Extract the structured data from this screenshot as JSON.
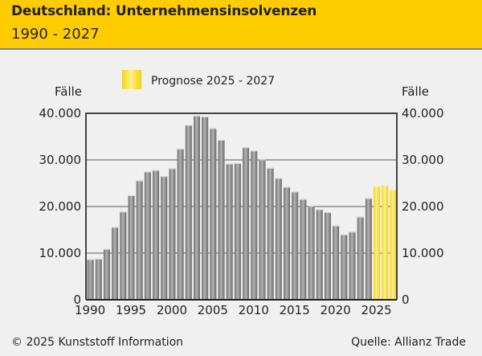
{
  "header": {
    "title": "Deutschland: Unternehmensinsolvenzen",
    "subtitle": "1990 - 2027"
  },
  "footer": {
    "copyright": "© 2025 Kunststoff Information",
    "source": "Quelle: Allianz Trade"
  },
  "colors": {
    "header_bg": "#ffcc00",
    "bar_actual": "#8a8a8a",
    "bar_forecast": "#ffdd33",
    "background": "#f0f0f0"
  },
  "chart_data": {
    "type": "bar",
    "title": "Deutschland: Unternehmensinsolvenzen",
    "subtitle": "1990 - 2027",
    "xlabel": "",
    "ylabel": "Fälle",
    "ylabel_right": "Fälle",
    "ylim": [
      0,
      40000
    ],
    "yticks": [
      0,
      10000,
      20000,
      30000,
      40000
    ],
    "ytick_labels": [
      "0",
      "10.000",
      "20.000",
      "30.000",
      "40.000"
    ],
    "xtick_labels": [
      "1990",
      "1995",
      "2000",
      "2005",
      "2010",
      "2015",
      "2020",
      "2025"
    ],
    "grid": true,
    "legend": [
      {
        "label": "Prognose 2025 - 2027",
        "series": "forecast"
      }
    ],
    "legend_placement": "top",
    "categories": [
      1990,
      1991,
      1992,
      1993,
      1994,
      1995,
      1996,
      1997,
      1998,
      1999,
      2000,
      2001,
      2002,
      2003,
      2004,
      2005,
      2006,
      2007,
      2008,
      2009,
      2010,
      2011,
      2012,
      2013,
      2014,
      2015,
      2016,
      2017,
      2018,
      2019,
      2020,
      2021,
      2022,
      2023,
      2024,
      2025,
      2026,
      2027
    ],
    "values": [
      8700,
      8800,
      10900,
      15600,
      18900,
      22400,
      25600,
      27500,
      27800,
      26500,
      28200,
      32400,
      37500,
      39500,
      39300,
      36800,
      34300,
      29200,
      29300,
      32700,
      32000,
      30100,
      28300,
      26100,
      24200,
      23200,
      21600,
      20100,
      19400,
      18800,
      15900,
      14000,
      14600,
      17800,
      21800,
      24400,
      24600,
      23600
    ],
    "forecast_from": 2025
  }
}
